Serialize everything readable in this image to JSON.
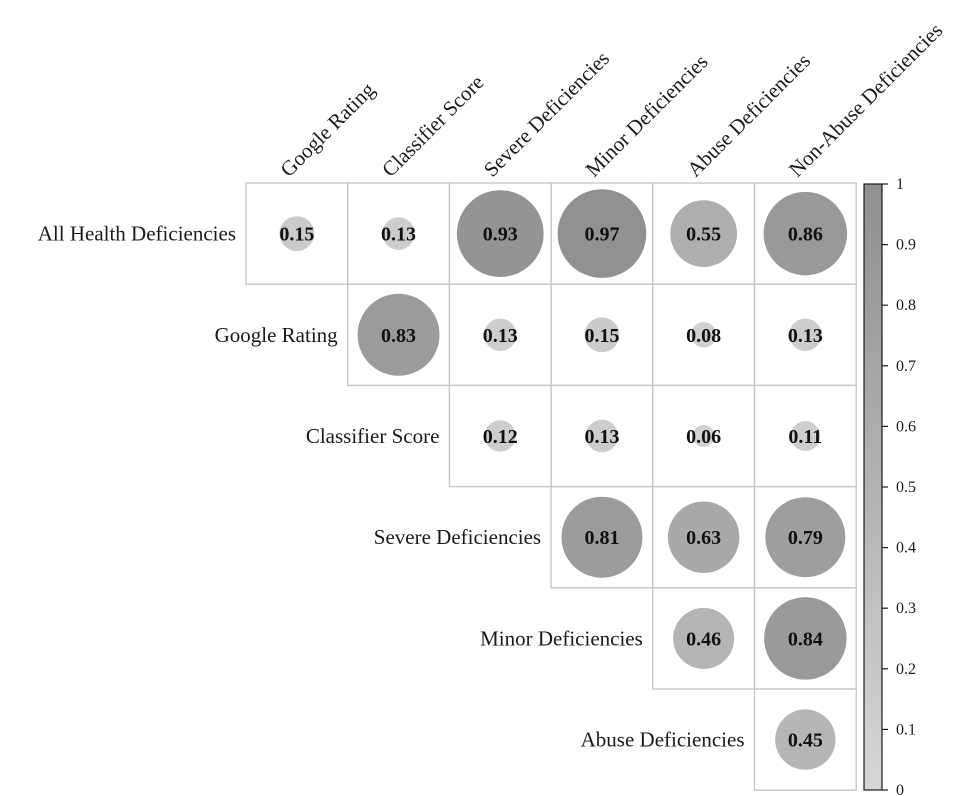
{
  "chart_data": {
    "type": "heatmap",
    "columns": [
      "Google Rating",
      "Classifier Score",
      "Severe Deficiencies",
      "Minor Deficiencies",
      "Abuse Deficiencies",
      "Non-Abuse Deficiencies"
    ],
    "rows": [
      "All Health Deficiencies",
      "Google Rating",
      "Classifier Score",
      "Severe Deficiencies",
      "Minor Deficiencies",
      "Abuse Deficiencies"
    ],
    "cells": [
      {
        "row": 0,
        "col": 0,
        "value": 0.15,
        "label": "0.15"
      },
      {
        "row": 0,
        "col": 1,
        "value": 0.13,
        "label": "0.13"
      },
      {
        "row": 0,
        "col": 2,
        "value": 0.93,
        "label": "0.93"
      },
      {
        "row": 0,
        "col": 3,
        "value": 0.97,
        "label": "0.97"
      },
      {
        "row": 0,
        "col": 4,
        "value": 0.55,
        "label": "0.55"
      },
      {
        "row": 0,
        "col": 5,
        "value": 0.86,
        "label": "0.86"
      },
      {
        "row": 1,
        "col": 1,
        "value": 0.83,
        "label": "0.83"
      },
      {
        "row": 1,
        "col": 2,
        "value": 0.13,
        "label": "0.13"
      },
      {
        "row": 1,
        "col": 3,
        "value": 0.15,
        "label": "0.15"
      },
      {
        "row": 1,
        "col": 4,
        "value": 0.08,
        "label": "0.08"
      },
      {
        "row": 1,
        "col": 5,
        "value": 0.13,
        "label": "0.13"
      },
      {
        "row": 2,
        "col": 2,
        "value": 0.12,
        "label": "0.12"
      },
      {
        "row": 2,
        "col": 3,
        "value": 0.13,
        "label": "0.13"
      },
      {
        "row": 2,
        "col": 4,
        "value": 0.06,
        "label": "0.06"
      },
      {
        "row": 2,
        "col": 5,
        "value": 0.11,
        "label": "0.11"
      },
      {
        "row": 3,
        "col": 3,
        "value": 0.81,
        "label": "0.81"
      },
      {
        "row": 3,
        "col": 4,
        "value": 0.63,
        "label": "0.63"
      },
      {
        "row": 3,
        "col": 5,
        "value": 0.79,
        "label": "0.79"
      },
      {
        "row": 4,
        "col": 4,
        "value": 0.46,
        "label": "0.46"
      },
      {
        "row": 4,
        "col": 5,
        "value": 0.84,
        "label": "0.84"
      },
      {
        "row": 5,
        "col": 5,
        "value": 0.45,
        "label": "0.45"
      }
    ],
    "colorbar": {
      "range": [
        0,
        1
      ],
      "ticks": [
        {
          "value": 1,
          "label": "1"
        },
        {
          "value": 0.9,
          "label": "0.9"
        },
        {
          "value": 0.8,
          "label": "0.8"
        },
        {
          "value": 0.7,
          "label": "0.7"
        },
        {
          "value": 0.6,
          "label": "0.6"
        },
        {
          "value": 0.5,
          "label": "0.5"
        },
        {
          "value": 0.4,
          "label": "0.4"
        },
        {
          "value": 0.3,
          "label": "0.3"
        },
        {
          "value": 0.2,
          "label": "0.2"
        },
        {
          "value": 0.1,
          "label": "0.1"
        },
        {
          "value": 0,
          "label": "0"
        }
      ]
    },
    "colors": {
      "low": "#d6d6d6",
      "high": "#8f8f8f",
      "grid": "#c6c6c6",
      "text": "#111111"
    }
  }
}
